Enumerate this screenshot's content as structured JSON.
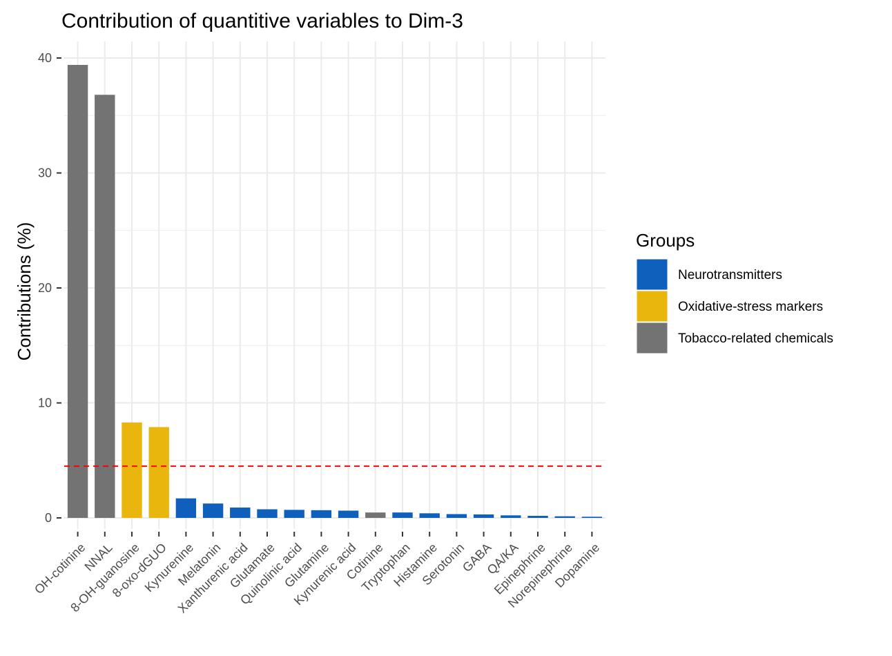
{
  "chart_data": {
    "type": "bar",
    "title": "Contribution of quantitive variables to Dim-3",
    "xlabel": "",
    "ylabel": "Contributions (%)",
    "ylim": [
      0,
      40
    ],
    "yticks": [
      0,
      10,
      20,
      30,
      40
    ],
    "categories": [
      "OH-cotinine",
      "NNAL",
      "8-OH-guanosine",
      "8-oxo-dGUO",
      "Kynurenine",
      "Melatonin",
      "Xanthurenic acid",
      "Glutamate",
      "Quinolinic acid",
      "Glutamine",
      "Kynurenic acid",
      "Cotinine",
      "Tryptophan",
      "Histamine",
      "Serotonin",
      "GABA",
      "QA/KA",
      "Epinephrine",
      "Norepinephrine",
      "Dopamine"
    ],
    "values": [
      39.4,
      36.8,
      8.3,
      7.9,
      1.7,
      1.25,
      0.9,
      0.75,
      0.7,
      0.67,
      0.63,
      0.47,
      0.47,
      0.4,
      0.33,
      0.3,
      0.22,
      0.18,
      0.14,
      0.1
    ],
    "groups": [
      "Tobacco-related chemicals",
      "Tobacco-related chemicals",
      "Oxidative-stress markers",
      "Oxidative-stress markers",
      "Neurotransmitters",
      "Neurotransmitters",
      "Neurotransmitters",
      "Neurotransmitters",
      "Neurotransmitters",
      "Neurotransmitters",
      "Neurotransmitters",
      "Tobacco-related chemicals",
      "Neurotransmitters",
      "Neurotransmitters",
      "Neurotransmitters",
      "Neurotransmitters",
      "Neurotransmitters",
      "Neurotransmitters",
      "Neurotransmitters",
      "Neurotransmitters"
    ],
    "reference_line": {
      "value": 4.5,
      "style": "dashed",
      "color": "#ff0000"
    },
    "grid": true,
    "legend": {
      "title": "Groups",
      "position": "right",
      "entries": [
        {
          "label": "Neurotransmitters",
          "color": "#0f5fbd"
        },
        {
          "label": "Oxidative-stress markers",
          "color": "#e8b60c"
        },
        {
          "label": "Tobacco-related chemicals",
          "color": "#737373"
        }
      ]
    }
  }
}
